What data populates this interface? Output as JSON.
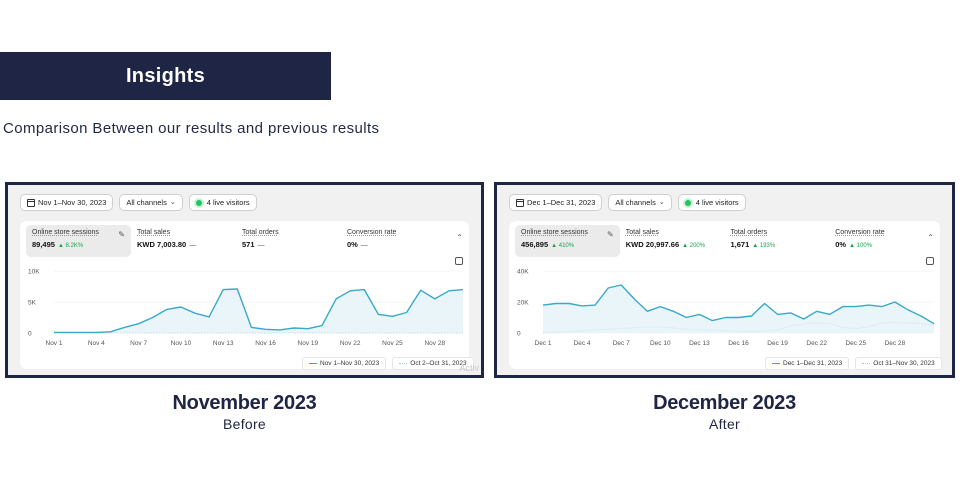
{
  "header": {
    "title": "Insights",
    "subtitle": "Comparison Between our results and previous results"
  },
  "colors": {
    "navy": "#1f2545",
    "line": "#39a9c9",
    "compare": "#a8c8cc"
  },
  "before": {
    "date_range": "Nov 1–Nov 30, 2023",
    "channels": "All channels",
    "live": "4 live visitors",
    "metrics": {
      "sessions_label": "Online store sessions",
      "sessions_value": "89,495",
      "sessions_change": "▲ 8.2K%",
      "sales_label": "Total sales",
      "sales_value": "KWD 7,003.80",
      "sales_change": "—",
      "orders_label": "Total orders",
      "orders_value": "571",
      "orders_change": "—",
      "conv_label": "Conversion rate",
      "conv_value": "0%",
      "conv_change": "—"
    },
    "legend_current": "Nov 1–Nov 30, 2023",
    "legend_previous": "Oct 2–Oct 31, 2023",
    "watermark": "Activ",
    "caption_title": "November 2023",
    "caption_sub": "Before"
  },
  "after": {
    "date_range": "Dec 1–Dec 31, 2023",
    "channels": "All channels",
    "live": "4 live visitors",
    "metrics": {
      "sessions_label": "Online store sessions",
      "sessions_value": "456,895",
      "sessions_change": "▲ 410%",
      "sales_label": "Total sales",
      "sales_value": "KWD 20,997.66",
      "sales_change": "▲ 200%",
      "orders_label": "Total orders",
      "orders_value": "1,671",
      "orders_change": "▲ 193%",
      "conv_label": "Conversion rate",
      "conv_value": "0%",
      "conv_change": "▲ 100%"
    },
    "legend_current": "Dec 1–Dec 31, 2023",
    "legend_previous": "Oct 31–Nov 30, 2023",
    "caption_title": "December 2023",
    "caption_sub": "After"
  },
  "chart_data": [
    {
      "type": "line",
      "title": "Online store sessions",
      "y_ticks": [
        "10K",
        "5K",
        "0"
      ],
      "ylim": [
        0,
        10000
      ],
      "x_ticks": [
        "Nov 1",
        "Nov 4",
        "Nov 7",
        "Nov 10",
        "Nov 13",
        "Nov 16",
        "Nov 19",
        "Nov 22",
        "Nov 25",
        "Nov 28"
      ],
      "x": [
        1,
        2,
        3,
        4,
        5,
        6,
        7,
        8,
        9,
        10,
        11,
        12,
        13,
        14,
        15,
        16,
        17,
        18,
        19,
        20,
        21,
        22,
        23,
        24,
        25,
        26,
        27,
        28,
        29,
        30
      ],
      "series": [
        {
          "name": "Nov 1–Nov 30, 2023",
          "values": [
            100,
            100,
            100,
            100,
            200,
            900,
            1500,
            2500,
            3800,
            4200,
            3200,
            2600,
            7000,
            7100,
            900,
            600,
            500,
            800,
            700,
            1200,
            5500,
            6800,
            7000,
            3000,
            2700,
            3300,
            6900,
            5500,
            6800,
            7000
          ]
        },
        {
          "name": "Oct 2–Oct 31, 2023",
          "values": [
            50,
            50,
            50,
            50,
            50,
            50,
            50,
            50,
            50,
            50,
            50,
            50,
            50,
            50,
            50,
            50,
            50,
            50,
            50,
            50,
            50,
            50,
            50,
            50,
            50,
            50,
            50,
            50,
            50,
            50
          ]
        }
      ]
    },
    {
      "type": "line",
      "title": "Online store sessions",
      "y_ticks": [
        "40K",
        "20K",
        "0"
      ],
      "ylim": [
        0,
        40000
      ],
      "x_ticks": [
        "Dec 1",
        "Dec 4",
        "Dec 7",
        "Dec 10",
        "Dec 13",
        "Dec 16",
        "Dec 19",
        "Dec 22",
        "Dec 25",
        "Dec 28"
      ],
      "x": [
        1,
        2,
        3,
        4,
        5,
        6,
        7,
        8,
        9,
        10,
        11,
        12,
        13,
        14,
        15,
        16,
        17,
        18,
        19,
        20,
        21,
        22,
        23,
        24,
        25,
        26,
        27,
        28,
        29,
        30,
        31
      ],
      "series": [
        {
          "name": "Dec 1–Dec 31, 2023",
          "values": [
            18000,
            19000,
            19000,
            17500,
            18000,
            29000,
            31000,
            22000,
            14000,
            17000,
            14000,
            10000,
            12000,
            8000,
            10000,
            10000,
            11000,
            19000,
            12000,
            13000,
            9000,
            14000,
            12000,
            17000,
            17000,
            18000,
            17000,
            20000,
            15000,
            11000,
            6000
          ]
        },
        {
          "name": "Oct 31–Nov 30, 2023",
          "values": [
            200,
            500,
            1000,
            1500,
            2000,
            2500,
            3000,
            3500,
            4000,
            3800,
            3200,
            2500,
            2000,
            1800,
            1500,
            1000,
            1000,
            1200,
            2000,
            4500,
            6000,
            6500,
            6000,
            3500,
            3000,
            4000,
            6500,
            7000,
            6500,
            6000,
            5000
          ]
        }
      ]
    }
  ]
}
